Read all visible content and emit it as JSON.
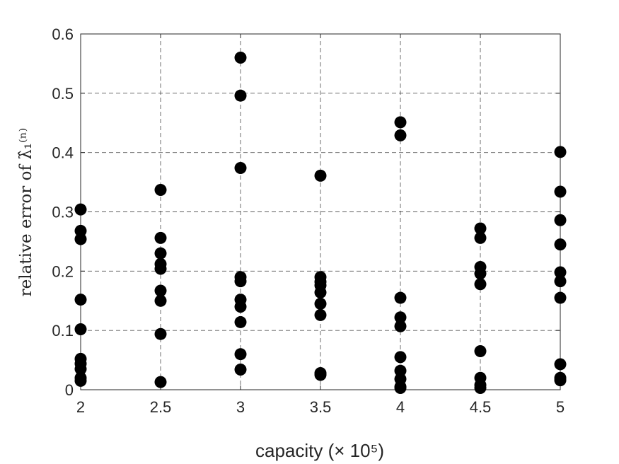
{
  "chart_data": {
    "type": "scatter",
    "xlabel": "capacity (× 10⁵)",
    "ylabel": "relative error of λ̂₁⁽ⁿ⁾",
    "xlim": [
      2,
      5
    ],
    "ylim": [
      0,
      0.6
    ],
    "grid": true,
    "x_ticks": [
      "2",
      "2.5",
      "3",
      "3.5",
      "4",
      "4.5",
      "5"
    ],
    "y_ticks": [
      "0",
      "0.1",
      "0.2",
      "0.3",
      "0.4",
      "0.5",
      "0.6"
    ],
    "marker_color": "#000000",
    "points": [
      {
        "x": 2,
        "y": 0.304
      },
      {
        "x": 2,
        "y": 0.268
      },
      {
        "x": 2,
        "y": 0.254
      },
      {
        "x": 2,
        "y": 0.152
      },
      {
        "x": 2,
        "y": 0.102
      },
      {
        "x": 2,
        "y": 0.052
      },
      {
        "x": 2,
        "y": 0.044
      },
      {
        "x": 2,
        "y": 0.035
      },
      {
        "x": 2,
        "y": 0.02
      },
      {
        "x": 2,
        "y": 0.015
      },
      {
        "x": 2.5,
        "y": 0.337
      },
      {
        "x": 2.5,
        "y": 0.256
      },
      {
        "x": 2.5,
        "y": 0.23
      },
      {
        "x": 2.5,
        "y": 0.212
      },
      {
        "x": 2.5,
        "y": 0.204
      },
      {
        "x": 2.5,
        "y": 0.167
      },
      {
        "x": 2.5,
        "y": 0.15
      },
      {
        "x": 2.5,
        "y": 0.094
      },
      {
        "x": 2.5,
        "y": 0.013
      },
      {
        "x": 3,
        "y": 0.56
      },
      {
        "x": 3,
        "y": 0.496
      },
      {
        "x": 3,
        "y": 0.374
      },
      {
        "x": 3,
        "y": 0.19
      },
      {
        "x": 3,
        "y": 0.183
      },
      {
        "x": 3,
        "y": 0.152
      },
      {
        "x": 3,
        "y": 0.14
      },
      {
        "x": 3,
        "y": 0.114
      },
      {
        "x": 3,
        "y": 0.06
      },
      {
        "x": 3,
        "y": 0.034
      },
      {
        "x": 3.5,
        "y": 0.361
      },
      {
        "x": 3.5,
        "y": 0.19
      },
      {
        "x": 3.5,
        "y": 0.182
      },
      {
        "x": 3.5,
        "y": 0.176
      },
      {
        "x": 3.5,
        "y": 0.164
      },
      {
        "x": 3.5,
        "y": 0.145
      },
      {
        "x": 3.5,
        "y": 0.126
      },
      {
        "x": 3.5,
        "y": 0.028
      },
      {
        "x": 3.5,
        "y": 0.025
      },
      {
        "x": 4,
        "y": 0.451
      },
      {
        "x": 4,
        "y": 0.429
      },
      {
        "x": 4,
        "y": 0.155
      },
      {
        "x": 4,
        "y": 0.122
      },
      {
        "x": 4,
        "y": 0.107
      },
      {
        "x": 4,
        "y": 0.055
      },
      {
        "x": 4,
        "y": 0.032
      },
      {
        "x": 4,
        "y": 0.018
      },
      {
        "x": 4,
        "y": 0.005
      },
      {
        "x": 4,
        "y": 0.003
      },
      {
        "x": 4.5,
        "y": 0.272
      },
      {
        "x": 4.5,
        "y": 0.256
      },
      {
        "x": 4.5,
        "y": 0.207
      },
      {
        "x": 4.5,
        "y": 0.196
      },
      {
        "x": 4.5,
        "y": 0.178
      },
      {
        "x": 4.5,
        "y": 0.065
      },
      {
        "x": 4.5,
        "y": 0.02
      },
      {
        "x": 4.5,
        "y": 0.008
      },
      {
        "x": 4.5,
        "y": 0.003
      },
      {
        "x": 5,
        "y": 0.401
      },
      {
        "x": 5,
        "y": 0.334
      },
      {
        "x": 5,
        "y": 0.286
      },
      {
        "x": 5,
        "y": 0.245
      },
      {
        "x": 5,
        "y": 0.198
      },
      {
        "x": 5,
        "y": 0.183
      },
      {
        "x": 5,
        "y": 0.155
      },
      {
        "x": 5,
        "y": 0.043
      },
      {
        "x": 5,
        "y": 0.02
      },
      {
        "x": 5,
        "y": 0.016
      }
    ]
  }
}
